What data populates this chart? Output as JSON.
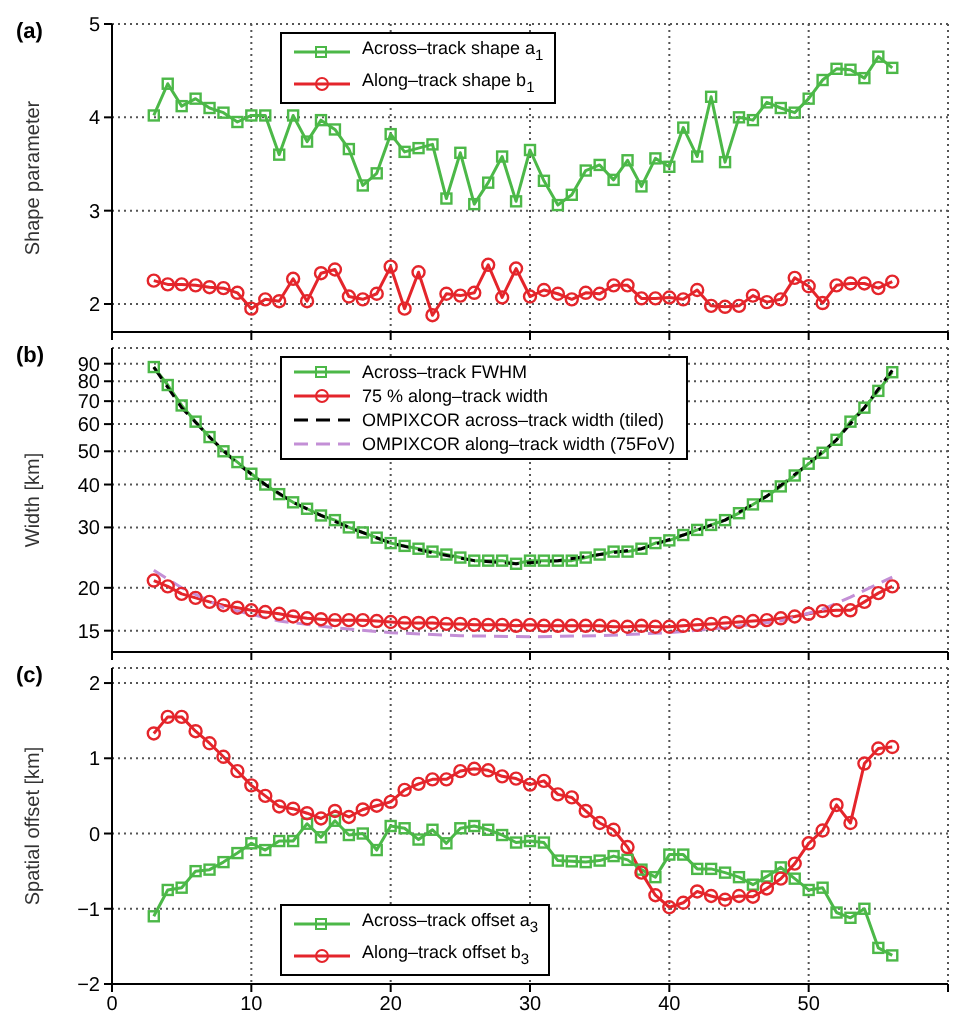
{
  "chart_data": [
    {
      "type": "line",
      "title": "(a)",
      "ylabel": "Shape parameter",
      "x": [
        3,
        4,
        5,
        6,
        7,
        8,
        9,
        10,
        11,
        12,
        13,
        14,
        15,
        16,
        17,
        18,
        19,
        20,
        21,
        22,
        23,
        24,
        25,
        26,
        27,
        28,
        29,
        30,
        31,
        32,
        33,
        34,
        35,
        36,
        37,
        38,
        39,
        40,
        41,
        42,
        43,
        44,
        45,
        46,
        47,
        48,
        49,
        50,
        51,
        52,
        53,
        54,
        55,
        56
      ],
      "xlim": [
        0,
        60
      ],
      "xticks": [
        0,
        10,
        20,
        30,
        40,
        50,
        60
      ],
      "ylim": [
        1.7,
        5
      ],
      "yticks": [
        2,
        3,
        4,
        5
      ],
      "grid": true,
      "legend": "top",
      "tick_labels": "y",
      "line_style": "solid",
      "series": [
        {
          "name": "Across–track shape a$_{1}$",
          "color": "#4cb848",
          "marker": "square",
          "values": [
            4.02,
            4.36,
            4.12,
            4.2,
            4.1,
            4.05,
            3.95,
            4.02,
            4.02,
            3.6,
            4.02,
            3.74,
            3.97,
            3.87,
            3.66,
            3.27,
            3.4,
            3.82,
            3.63,
            3.67,
            3.71,
            3.13,
            3.62,
            3.07,
            3.3,
            3.58,
            3.1,
            3.65,
            3.32,
            3.06,
            3.17,
            3.43,
            3.49,
            3.33,
            3.54,
            3.26,
            3.56,
            3.47,
            3.89,
            3.58,
            4.22,
            3.52,
            4.0,
            3.97,
            4.16,
            4.1,
            4.05,
            4.2,
            4.4,
            4.52,
            4.51,
            4.42,
            4.65,
            4.53
          ]
        },
        {
          "name": "Along–track shape b$_{1}$",
          "color": "#e4252b",
          "marker": "circle",
          "values": [
            2.25,
            2.21,
            2.21,
            2.2,
            2.18,
            2.17,
            2.12,
            1.95,
            2.05,
            2.03,
            2.27,
            2.03,
            2.33,
            2.37,
            2.08,
            2.05,
            2.11,
            2.4,
            1.95,
            2.34,
            1.88,
            2.11,
            2.09,
            2.12,
            2.42,
            2.07,
            2.38,
            2.08,
            2.15,
            2.11,
            2.05,
            2.12,
            2.11,
            2.2,
            2.2,
            2.06,
            2.06,
            2.07,
            2.05,
            2.15,
            1.98,
            1.97,
            1.98,
            2.09,
            2.02,
            2.05,
            2.28,
            2.19,
            2.01,
            2.2,
            2.22,
            2.22,
            2.17,
            2.24
          ]
        }
      ]
    },
    {
      "type": "line",
      "title": "(b)",
      "ylabel": "Width [km]",
      "log": "y",
      "x": [
        3,
        4,
        5,
        6,
        7,
        8,
        9,
        10,
        11,
        12,
        13,
        14,
        15,
        16,
        17,
        18,
        19,
        20,
        21,
        22,
        23,
        24,
        25,
        26,
        27,
        28,
        29,
        30,
        31,
        32,
        33,
        34,
        35,
        36,
        37,
        38,
        39,
        40,
        41,
        42,
        43,
        44,
        45,
        46,
        47,
        48,
        49,
        50,
        51,
        52,
        53,
        54,
        55,
        56
      ],
      "xlim": [
        0,
        60
      ],
      "xticks": [
        0,
        10,
        20,
        30,
        40,
        50,
        60
      ],
      "ylim": [
        13,
        100
      ],
      "yticks": [
        15,
        20,
        30,
        40,
        50,
        60,
        70,
        80,
        90
      ],
      "grid": true,
      "legend": "top",
      "tick_labels": "y",
      "series": [
        {
          "name": "Across–track FWHM",
          "color": "#4cb848",
          "marker": "square",
          "line_style": "solid",
          "values": [
            88,
            78,
            68,
            61,
            55,
            50,
            46.5,
            43,
            40,
            37.5,
            35.5,
            34,
            32.5,
            31.5,
            30,
            29,
            28,
            27,
            26.5,
            26,
            25.5,
            25,
            24.5,
            24,
            24,
            24,
            23.5,
            24,
            24,
            24,
            24,
            24.5,
            25,
            25.5,
            25.5,
            26,
            27,
            27.5,
            28.5,
            29.5,
            30.5,
            31.5,
            33,
            35,
            37,
            39.5,
            42.5,
            46,
            49.5,
            54,
            61,
            67,
            75,
            85
          ]
        },
        {
          "name": "75 % along–track width",
          "color": "#e4252b",
          "marker": "circle",
          "line_style": "solid",
          "values": [
            21,
            20.2,
            19.2,
            18.7,
            18.2,
            17.8,
            17.5,
            17.2,
            17,
            16.8,
            16.5,
            16.3,
            16.2,
            16.1,
            16.1,
            16.1,
            16,
            15.9,
            15.8,
            15.8,
            15.8,
            15.7,
            15.7,
            15.6,
            15.6,
            15.6,
            15.5,
            15.6,
            15.5,
            15.5,
            15.5,
            15.5,
            15.5,
            15.4,
            15.4,
            15.5,
            15.4,
            15.4,
            15.5,
            15.6,
            15.7,
            15.8,
            15.9,
            16,
            16.1,
            16.3,
            16.5,
            16.8,
            17.1,
            17.2,
            17.2,
            18.2,
            19.3,
            20.2
          ]
        },
        {
          "name": "OMPIXCOR across–track width (tiled)",
          "color": "#000000",
          "marker": "none",
          "line_style": "dashed",
          "x": [
            3,
            5,
            7,
            9,
            11,
            13,
            15,
            17,
            20,
            23,
            26,
            29,
            32,
            35,
            38,
            41,
            44,
            47,
            50,
            52,
            54,
            56
          ],
          "values": [
            88,
            67,
            55,
            46,
            40,
            35.5,
            32.5,
            30,
            27,
            25.3,
            24,
            23.5,
            24,
            25,
            26,
            28.5,
            31.5,
            37,
            46,
            54,
            67,
            86
          ]
        },
        {
          "name": "OMPIXCOR along–track width (75FoV)",
          "color": "#c38fd6",
          "marker": "none",
          "line_style": "dashed",
          "x": [
            3,
            5,
            8,
            12,
            16,
            20,
            25,
            30,
            35,
            40,
            44,
            48,
            51,
            53,
            56
          ],
          "values": [
            22.5,
            20,
            17.5,
            16,
            15.3,
            14.8,
            14.5,
            14.4,
            14.5,
            14.8,
            15.3,
            16,
            17.3,
            18.8,
            21.5
          ]
        }
      ]
    },
    {
      "type": "line",
      "title": "(c)",
      "ylabel": "Spatial offset [km]",
      "x": [
        3,
        4,
        5,
        6,
        7,
        8,
        9,
        10,
        11,
        12,
        13,
        14,
        15,
        16,
        17,
        18,
        19,
        20,
        21,
        22,
        23,
        24,
        25,
        26,
        27,
        28,
        29,
        30,
        31,
        32,
        33,
        34,
        35,
        36,
        37,
        38,
        39,
        40,
        41,
        42,
        43,
        44,
        45,
        46,
        47,
        48,
        49,
        50,
        51,
        52,
        53,
        54,
        55,
        56
      ],
      "xlim": [
        0,
        60
      ],
      "xticks": [
        0,
        10,
        20,
        30,
        40,
        50,
        {
          "value": 60,
          "label": null
        }
      ],
      "ylim": [
        -2,
        2.2
      ],
      "yticks": [
        {
          "value": -2,
          "label": "−2"
        },
        {
          "value": -1,
          "label": "−1"
        },
        0,
        1,
        2
      ],
      "grid": true,
      "legend": "bottom",
      "line_style": "solid",
      "series": [
        {
          "name": "Across–track offset a$_{3}$",
          "color": "#4cb848",
          "marker": "square",
          "values": [
            -1.1,
            -0.75,
            -0.72,
            -0.5,
            -0.48,
            -0.38,
            -0.26,
            -0.13,
            -0.22,
            -0.1,
            -0.1,
            0.13,
            -0.05,
            0.17,
            -0.02,
            0.0,
            -0.22,
            0.1,
            0.07,
            -0.08,
            0.05,
            -0.13,
            0.07,
            0.1,
            0.05,
            -0.02,
            -0.12,
            -0.1,
            -0.12,
            -0.36,
            -0.37,
            -0.38,
            -0.36,
            -0.3,
            -0.35,
            -0.48,
            -0.58,
            -0.28,
            -0.28,
            -0.47,
            -0.47,
            -0.52,
            -0.58,
            -0.68,
            -0.57,
            -0.45,
            -0.6,
            -0.75,
            -0.72,
            -1.05,
            -1.12,
            -1.0,
            -1.52,
            -1.62
          ]
        },
        {
          "name": "Along–track offset b$_{3}$",
          "color": "#e4252b",
          "marker": "circle",
          "values": [
            1.33,
            1.55,
            1.55,
            1.36,
            1.2,
            1.02,
            0.83,
            0.64,
            0.5,
            0.36,
            0.33,
            0.27,
            0.2,
            0.3,
            0.22,
            0.32,
            0.37,
            0.42,
            0.58,
            0.66,
            0.72,
            0.72,
            0.83,
            0.86,
            0.84,
            0.76,
            0.73,
            0.65,
            0.7,
            0.52,
            0.48,
            0.3,
            0.14,
            0.05,
            -0.18,
            -0.52,
            -0.82,
            -0.98,
            -0.92,
            -0.77,
            -0.83,
            -0.88,
            -0.83,
            -0.84,
            -0.73,
            -0.6,
            -0.4,
            -0.13,
            0.04,
            0.38,
            0.14,
            0.93,
            1.13,
            1.15
          ]
        }
      ]
    }
  ]
}
